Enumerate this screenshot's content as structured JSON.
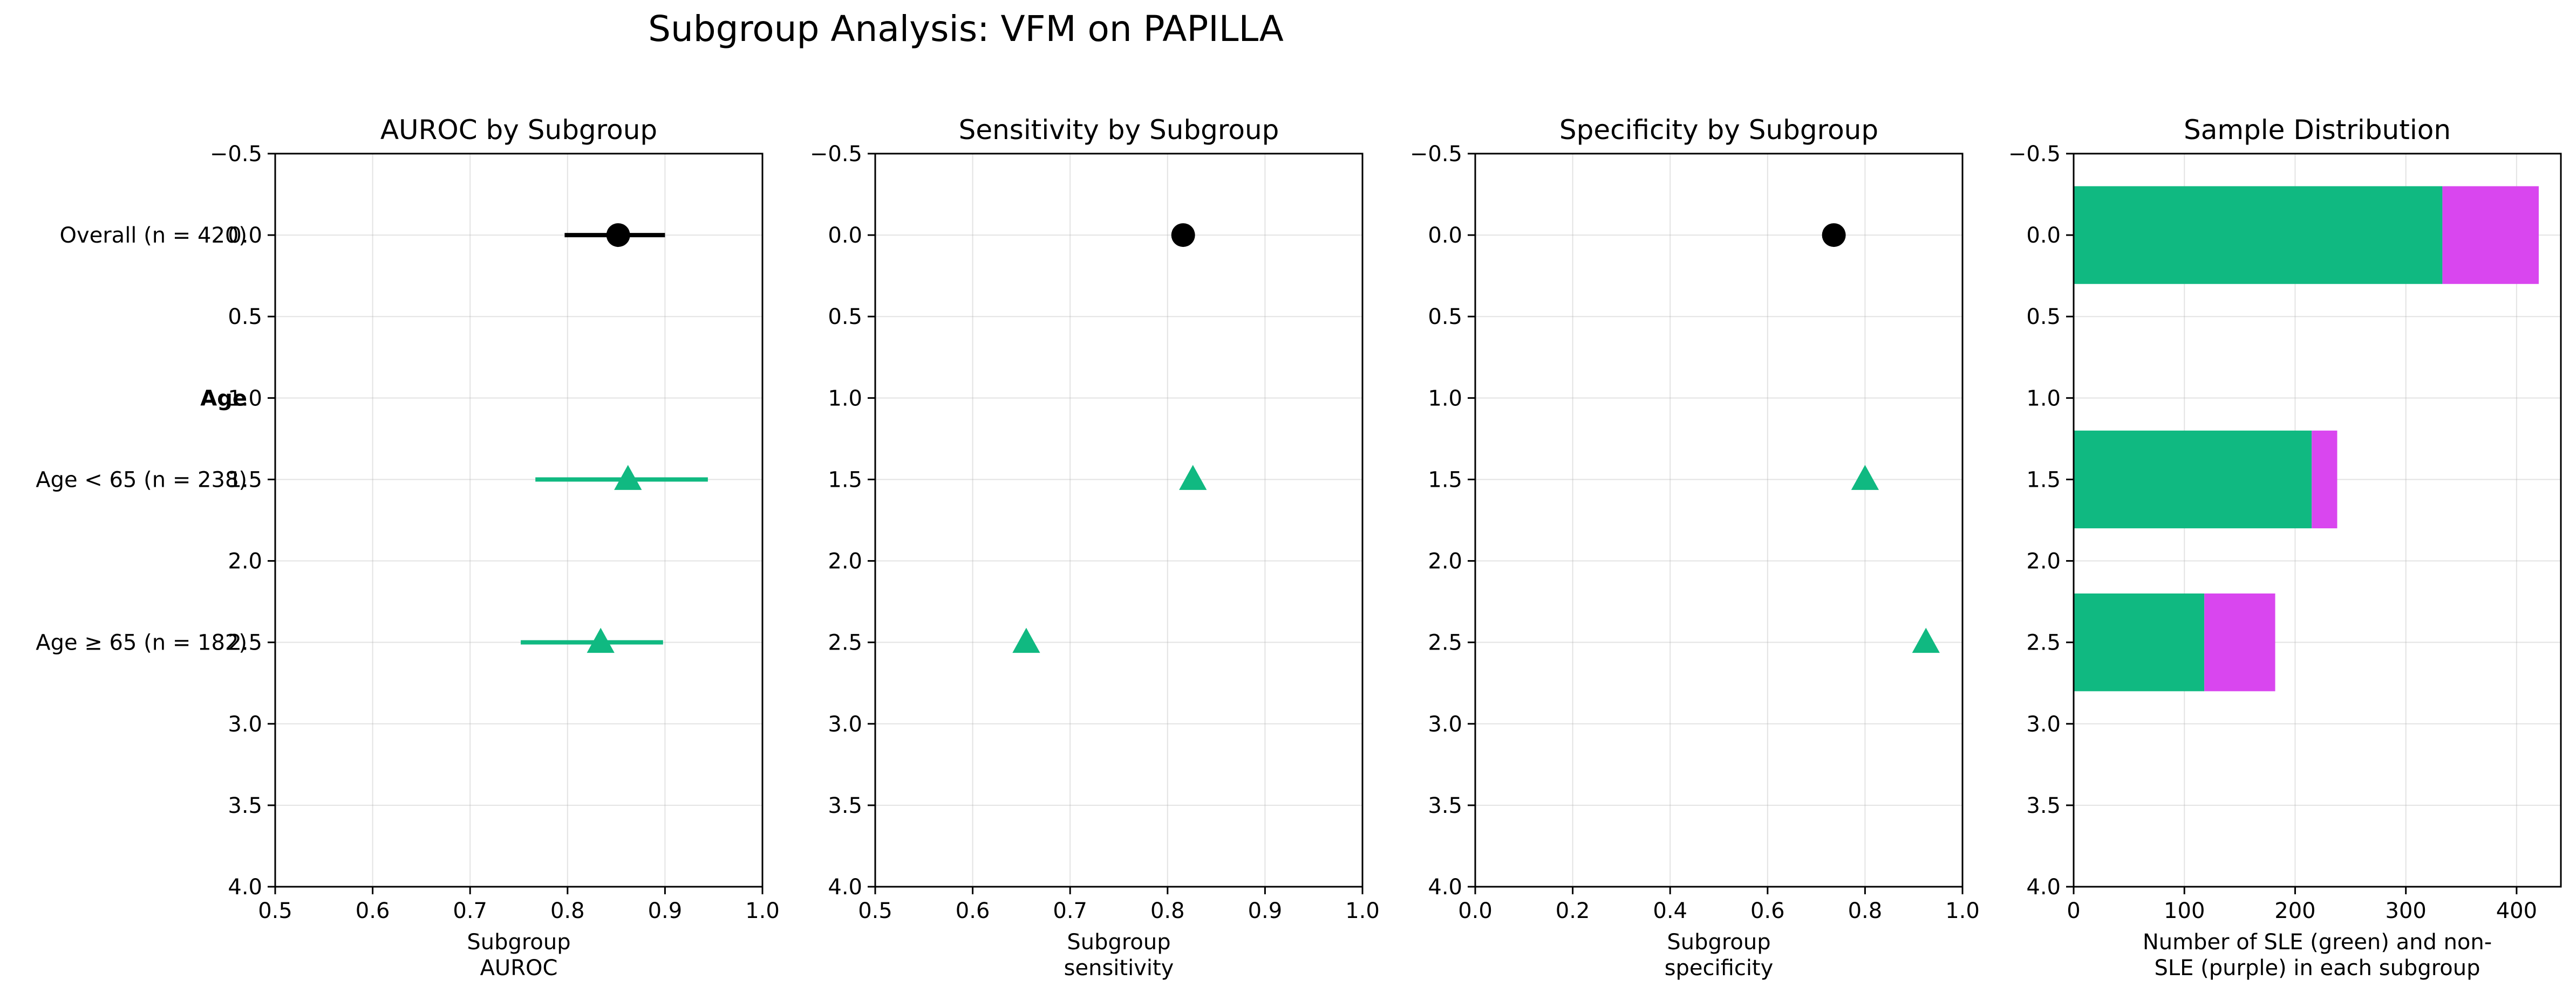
{
  "figure": {
    "title": "Subgroup Analysis: VFM on PAPILLA"
  },
  "colors": {
    "overall": "#000000",
    "age_group": "#10b981",
    "sle": "#10b981",
    "non_sle": "#d946ef"
  },
  "chart_data": [
    {
      "type": "scatter",
      "title": "AUROC by Subgroup",
      "xlabel": [
        "Subgroup",
        "AUROC"
      ],
      "xlim": [
        0.5,
        1.0
      ],
      "xticks": [
        "0.5",
        "0.6",
        "0.7",
        "0.8",
        "0.9",
        "1.0"
      ],
      "xtick_values": [
        0.5,
        0.6,
        0.7,
        0.8,
        0.9,
        1.0
      ],
      "ylim": [
        4.0,
        -0.5
      ],
      "yticks": [
        "−0.5",
        "0.0",
        "0.5",
        "1.0",
        "1.5",
        "2.0",
        "2.5",
        "3.0",
        "3.5",
        "4.0"
      ],
      "ytick_values": [
        -0.5,
        0,
        0.5,
        1.0,
        1.5,
        2.0,
        2.5,
        3.0,
        3.5,
        4.0
      ],
      "grid": true,
      "category_labels": [
        {
          "y": 0,
          "label": "Overall (n = 420)",
          "bold": false
        },
        {
          "y": 1,
          "label": "Age",
          "bold": true
        },
        {
          "y": 1.5,
          "label": "Age < 65 (n = 238)",
          "bold": false
        },
        {
          "y": 2.5,
          "label": "Age ≥ 65 (n = 182)",
          "bold": false
        }
      ],
      "points": [
        {
          "y": 0,
          "x": 0.852,
          "ci": [
            0.797,
            0.9
          ],
          "marker": "circle",
          "color": "#000000"
        },
        {
          "y": 1.5,
          "x": 0.862,
          "ci": [
            0.767,
            0.944
          ],
          "marker": "triangle",
          "color": "#10b981"
        },
        {
          "y": 2.5,
          "x": 0.834,
          "ci": [
            0.752,
            0.898
          ],
          "marker": "triangle",
          "color": "#10b981"
        }
      ]
    },
    {
      "type": "scatter",
      "title": "Sensitivity by Subgroup",
      "xlabel": [
        "Subgroup",
        "sensitivity"
      ],
      "xlim": [
        0.5,
        1.0
      ],
      "xticks": [
        "0.5",
        "0.6",
        "0.7",
        "0.8",
        "0.9",
        "1.0"
      ],
      "xtick_values": [
        0.5,
        0.6,
        0.7,
        0.8,
        0.9,
        1.0
      ],
      "ylim": [
        4.0,
        -0.5
      ],
      "yticks": [
        "−0.5",
        "0.0",
        "0.5",
        "1.0",
        "1.5",
        "2.0",
        "2.5",
        "3.0",
        "3.5",
        "4.0"
      ],
      "ytick_values": [
        -0.5,
        0,
        0.5,
        1.0,
        1.5,
        2.0,
        2.5,
        3.0,
        3.5,
        4.0
      ],
      "grid": true,
      "points": [
        {
          "y": 0,
          "x": 0.816,
          "marker": "circle",
          "color": "#000000"
        },
        {
          "y": 1.5,
          "x": 0.826,
          "marker": "triangle",
          "color": "#10b981"
        },
        {
          "y": 2.5,
          "x": 0.655,
          "marker": "triangle",
          "color": "#10b981"
        }
      ]
    },
    {
      "type": "scatter",
      "title": "Specificity by Subgroup",
      "xlabel": [
        "Subgroup",
        "specificity"
      ],
      "xlim": [
        0.0,
        1.0
      ],
      "xticks": [
        "0.0",
        "0.2",
        "0.4",
        "0.6",
        "0.8",
        "1.0"
      ],
      "xtick_values": [
        0.0,
        0.2,
        0.4,
        0.6,
        0.8,
        1.0
      ],
      "ylim": [
        4.0,
        -0.5
      ],
      "yticks": [
        "−0.5",
        "0.0",
        "0.5",
        "1.0",
        "1.5",
        "2.0",
        "2.5",
        "3.0",
        "3.5",
        "4.0"
      ],
      "ytick_values": [
        -0.5,
        0,
        0.5,
        1.0,
        1.5,
        2.0,
        2.5,
        3.0,
        3.5,
        4.0
      ],
      "grid": true,
      "points": [
        {
          "y": 0,
          "x": 0.736,
          "marker": "circle",
          "color": "#000000"
        },
        {
          "y": 1.5,
          "x": 0.8,
          "marker": "triangle",
          "color": "#10b981"
        },
        {
          "y": 2.5,
          "x": 0.925,
          "marker": "triangle",
          "color": "#10b981"
        }
      ]
    },
    {
      "type": "bar",
      "orientation": "horizontal",
      "stacked": true,
      "title": "Sample Distribution",
      "xlabel": [
        "Number of SLE (green) and non-",
        "SLE (purple) in each subgroup"
      ],
      "xlim": [
        0,
        440
      ],
      "xticks": [
        "0",
        "100",
        "200",
        "300",
        "400"
      ],
      "xtick_values": [
        0,
        100,
        200,
        300,
        400
      ],
      "ylim": [
        4.0,
        -0.5
      ],
      "yticks": [
        "−0.5",
        "0.0",
        "0.5",
        "1.0",
        "1.5",
        "2.0",
        "2.5",
        "3.0",
        "3.5",
        "4.0"
      ],
      "ytick_values": [
        -0.5,
        0,
        0.5,
        1.0,
        1.5,
        2.0,
        2.5,
        3.0,
        3.5,
        4.0
      ],
      "grid": true,
      "bar_height": 0.6,
      "series": [
        {
          "values": [
            333,
            215,
            118
          ],
          "color": "#10b981"
        },
        {
          "values": [
            87,
            23,
            64
          ],
          "color": "#d946ef"
        }
      ],
      "y_positions": [
        0,
        1.5,
        2.5
      ]
    }
  ]
}
